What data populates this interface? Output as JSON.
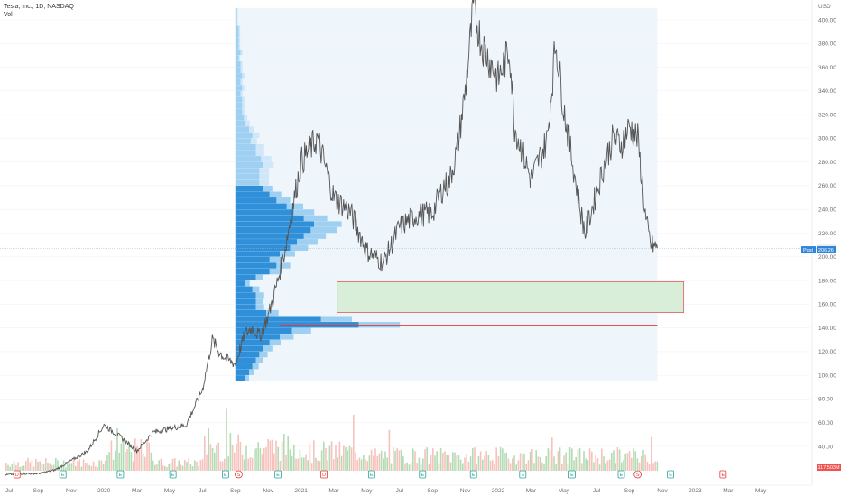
{
  "legend": {
    "title": "Tesla, Inc., 1D, NASDAQ",
    "indicator": "Vol"
  },
  "colors": {
    "price_line": "#555555",
    "vp_up": "#9fd0f2",
    "vp_up_alt": "#cfe7f8",
    "vp_down": "#2f8fd8",
    "vp_range_bg": "#eef6fc",
    "zone_fill": "#d8eed8",
    "zone_border": "#e05a5a",
    "poc_line": "#e53935",
    "vol_up": "#a5d6a7",
    "vol_down": "#f5b7b1",
    "last_price_tag": "#2f86d9",
    "vol_tag": "#ef5350",
    "earnings": "#2aa198",
    "split": "#e53935"
  },
  "chart_data": {
    "type": "line",
    "title": "Tesla, Inc., 1D, NASDAQ",
    "yunit": "USD",
    "ylim": [
      20,
      410
    ],
    "y_ticks": [
      400,
      380,
      360,
      340,
      320,
      300,
      280,
      260,
      240,
      220,
      200,
      180,
      160,
      140,
      120,
      100,
      80,
      60,
      40
    ],
    "x_tick_labels": [
      "Jul",
      "Sep",
      "Nov",
      "2020",
      "Mar",
      "May",
      "Jul",
      "Sep",
      "Nov",
      "2021",
      "Mar",
      "May",
      "Jul",
      "Sep",
      "Nov",
      "2022",
      "Mar",
      "May",
      "Jul",
      "Sep",
      "Nov",
      "2023",
      "Mar",
      "May"
    ],
    "x_tick_month_index": [
      0,
      2,
      4,
      6,
      8,
      10,
      12,
      14,
      16,
      18,
      20,
      22,
      24,
      26,
      28,
      30,
      32,
      34,
      36,
      38,
      40,
      42,
      44,
      46
    ],
    "price_series": {
      "name": "Close",
      "month_index": [
        0,
        1,
        2,
        3,
        4,
        5,
        6,
        7,
        8,
        9,
        10,
        11,
        12,
        12.6,
        13,
        13.5,
        14,
        14.6,
        15,
        15.5,
        16,
        16.5,
        17,
        18,
        19,
        20,
        21,
        22,
        23,
        24,
        25,
        26,
        26.7,
        27,
        27.5,
        28,
        28.5,
        29,
        30,
        30.7,
        31,
        32,
        33,
        33.5,
        34,
        35,
        35.3,
        36,
        36.5,
        37,
        37.5,
        38,
        38.5,
        39,
        39.3,
        39.7
      ],
      "values": [
        16,
        17,
        17,
        20,
        28,
        36,
        58,
        48,
        36,
        52,
        55,
        58,
        88,
        130,
        120,
        113,
        110,
        135,
        140,
        133,
        150,
        175,
        205,
        280,
        300,
        250,
        238,
        205,
        195,
        225,
        235,
        237,
        260,
        262,
        290,
        340,
        410,
        380,
        350,
        375,
        310,
        265,
        300,
        382,
        325,
        240,
        220,
        255,
        280,
        300,
        295,
        310,
        300,
        230,
        210,
        207
      ]
    },
    "last_price": 207.28,
    "last_price_label": "207.28",
    "prepost_label": "Post",
    "prepost_price": 206.26,
    "prepost_price_label": "206.26",
    "volume_label": "117.503M",
    "volume_profile": {
      "from_month": 14,
      "to_month": 39.7,
      "price_min": 95,
      "price_max": 410,
      "bins": [
        {
          "lo": 95,
          "hi": 100,
          "up": 0.05,
          "down": 0.06
        },
        {
          "lo": 100,
          "hi": 105,
          "up": 0.07,
          "down": 0.08
        },
        {
          "lo": 105,
          "hi": 110,
          "up": 0.09,
          "down": 0.1
        },
        {
          "lo": 110,
          "hi": 115,
          "up": 0.1,
          "down": 0.12
        },
        {
          "lo": 115,
          "hi": 120,
          "up": 0.12,
          "down": 0.14
        },
        {
          "lo": 120,
          "hi": 125,
          "up": 0.14,
          "down": 0.16
        },
        {
          "lo": 125,
          "hi": 130,
          "up": 0.16,
          "down": 0.2
        },
        {
          "lo": 130,
          "hi": 135,
          "up": 0.2,
          "down": 0.26
        },
        {
          "lo": 135,
          "hi": 140,
          "up": 0.28,
          "down": 0.33
        },
        {
          "lo": 140,
          "hi": 145,
          "up": 0.6,
          "down": 0.72
        },
        {
          "lo": 145,
          "hi": 150,
          "up": 0.45,
          "down": 0.5
        },
        {
          "lo": 150,
          "hi": 155,
          "up": 0.18,
          "down": 0.18
        },
        {
          "lo": 155,
          "hi": 160,
          "up": 0.12,
          "down": 0.12
        },
        {
          "lo": 160,
          "hi": 165,
          "up": 0.1,
          "down": 0.12
        },
        {
          "lo": 165,
          "hi": 170,
          "up": 0.12,
          "down": 0.12
        },
        {
          "lo": 170,
          "hi": 175,
          "up": 0.1,
          "down": 0.1
        },
        {
          "lo": 175,
          "hi": 180,
          "up": 0.06,
          "down": 0.06
        },
        {
          "lo": 180,
          "hi": 185,
          "up": 0.1,
          "down": 0.12
        },
        {
          "lo": 185,
          "hi": 190,
          "up": 0.18,
          "down": 0.2
        },
        {
          "lo": 190,
          "hi": 195,
          "up": 0.2,
          "down": 0.24
        },
        {
          "lo": 195,
          "hi": 200,
          "up": 0.18,
          "down": 0.2
        },
        {
          "lo": 200,
          "hi": 205,
          "up": 0.22,
          "down": 0.26
        },
        {
          "lo": 205,
          "hi": 210,
          "up": 0.26,
          "down": 0.32
        },
        {
          "lo": 210,
          "hi": 215,
          "up": 0.3,
          "down": 0.36
        },
        {
          "lo": 215,
          "hi": 220,
          "up": 0.32,
          "down": 0.4
        },
        {
          "lo": 220,
          "hi": 225,
          "up": 0.38,
          "down": 0.44
        },
        {
          "lo": 225,
          "hi": 230,
          "up": 0.4,
          "down": 0.46
        },
        {
          "lo": 230,
          "hi": 235,
          "up": 0.34,
          "down": 0.4
        },
        {
          "lo": 235,
          "hi": 240,
          "up": 0.3,
          "down": 0.34
        },
        {
          "lo": 240,
          "hi": 245,
          "up": 0.24,
          "down": 0.3
        },
        {
          "lo": 245,
          "hi": 250,
          "up": 0.2,
          "down": 0.24
        },
        {
          "lo": 250,
          "hi": 255,
          "up": 0.17,
          "down": 0.2
        },
        {
          "lo": 255,
          "hi": 260,
          "up": 0.14,
          "down": 0.16
        },
        {
          "lo": 260,
          "hi": 265,
          "up": 0.14,
          "down": 0.14
        },
        {
          "lo": 265,
          "hi": 270,
          "up": 0.14,
          "down": 0.14
        },
        {
          "lo": 270,
          "hi": 275,
          "up": 0.14,
          "down": 0.14
        },
        {
          "lo": 275,
          "hi": 280,
          "up": 0.16,
          "down": 0.16
        },
        {
          "lo": 280,
          "hi": 285,
          "up": 0.15,
          "down": 0.15
        },
        {
          "lo": 285,
          "hi": 290,
          "up": 0.12,
          "down": 0.12
        },
        {
          "lo": 290,
          "hi": 295,
          "up": 0.12,
          "down": 0.12
        },
        {
          "lo": 295,
          "hi": 300,
          "up": 0.09,
          "down": 0.09
        },
        {
          "lo": 300,
          "hi": 305,
          "up": 0.1,
          "down": 0.1
        },
        {
          "lo": 305,
          "hi": 310,
          "up": 0.08,
          "down": 0.08
        },
        {
          "lo": 310,
          "hi": 315,
          "up": 0.06,
          "down": 0.06
        },
        {
          "lo": 315,
          "hi": 320,
          "up": 0.05,
          "down": 0.05
        },
        {
          "lo": 320,
          "hi": 325,
          "up": 0.04,
          "down": 0.04
        },
        {
          "lo": 325,
          "hi": 330,
          "up": 0.04,
          "down": 0.04
        },
        {
          "lo": 330,
          "hi": 335,
          "up": 0.04,
          "down": 0.04
        },
        {
          "lo": 335,
          "hi": 340,
          "up": 0.03,
          "down": 0.03
        },
        {
          "lo": 340,
          "hi": 345,
          "up": 0.04,
          "down": 0.04
        },
        {
          "lo": 345,
          "hi": 350,
          "up": 0.03,
          "down": 0.03
        },
        {
          "lo": 350,
          "hi": 355,
          "up": 0.04,
          "down": 0.04
        },
        {
          "lo": 355,
          "hi": 360,
          "up": 0.03,
          "down": 0.03
        },
        {
          "lo": 360,
          "hi": 365,
          "up": 0.03,
          "down": 0.03
        },
        {
          "lo": 365,
          "hi": 370,
          "up": 0.02,
          "down": 0.02
        },
        {
          "lo": 370,
          "hi": 375,
          "up": 0.03,
          "down": 0.03
        },
        {
          "lo": 375,
          "hi": 380,
          "up": 0.02,
          "down": 0.02
        },
        {
          "lo": 380,
          "hi": 385,
          "up": 0.02,
          "down": 0.02
        },
        {
          "lo": 385,
          "hi": 390,
          "up": 0.02,
          "down": 0.02
        },
        {
          "lo": 390,
          "hi": 395,
          "up": 0.02,
          "down": 0.02
        },
        {
          "lo": 395,
          "hi": 400,
          "up": 0.01,
          "down": 0.01
        },
        {
          "lo": 400,
          "hi": 405,
          "up": 0.01,
          "down": 0.01
        },
        {
          "lo": 405,
          "hi": 410,
          "up": 0.01,
          "down": 0.01
        }
      ],
      "poc_price": 142,
      "value_area_low": 95,
      "value_area_high": 262
    },
    "demand_zone": {
      "from_month": 20.2,
      "to_month": 41.3,
      "price_low": 153,
      "price_high": 179
    },
    "poc_extension": {
      "from_month": 16.7,
      "to_month": 39.7,
      "price": 142
    },
    "events": [
      {
        "type": "dividend",
        "label": "D",
        "month_index": 0.7
      },
      {
        "type": "earnings",
        "label": "E",
        "month_index": 3.5
      },
      {
        "type": "earnings",
        "label": "E",
        "month_index": 7
      },
      {
        "type": "earnings",
        "label": "E",
        "month_index": 10.2
      },
      {
        "type": "earnings",
        "label": "E",
        "month_index": 13.4
      },
      {
        "type": "split",
        "label": "S",
        "month_index": 14.2
      },
      {
        "type": "earnings",
        "label": "E",
        "month_index": 16.6
      },
      {
        "type": "dividend",
        "label": "D",
        "month_index": 19.4
      },
      {
        "type": "earnings",
        "label": "E",
        "month_index": 22.3
      },
      {
        "type": "earnings",
        "label": "E",
        "month_index": 25.4
      },
      {
        "type": "earnings",
        "label": "E",
        "month_index": 28.5
      },
      {
        "type": "earnings",
        "label": "E",
        "month_index": 31.5
      },
      {
        "type": "earnings",
        "label": "E",
        "month_index": 34.5
      },
      {
        "type": "earnings",
        "label": "E",
        "month_index": 37.5
      },
      {
        "type": "split",
        "label": "S",
        "month_index": 38.5
      },
      {
        "type": "earnings",
        "label": "E",
        "month_index": 40.5
      },
      {
        "type": "future",
        "label": "E",
        "month_index": 43.7
      }
    ]
  }
}
